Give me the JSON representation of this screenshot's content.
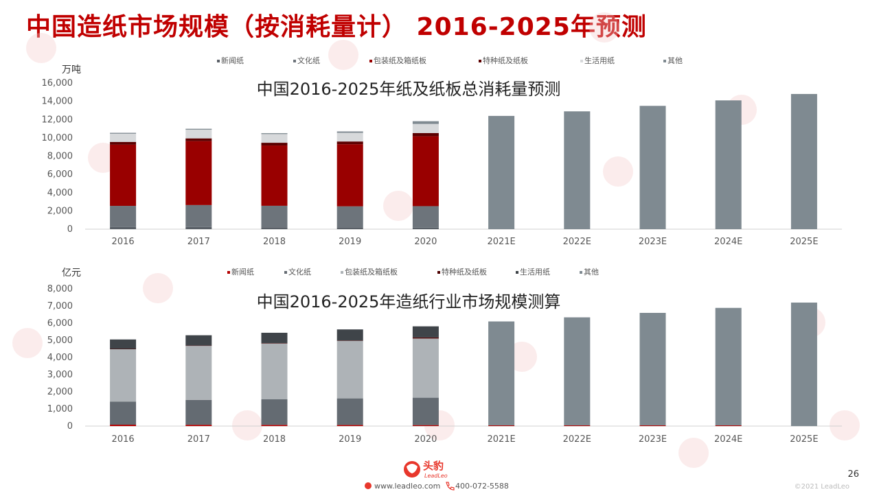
{
  "title": "中国造纸市场规模（按消耗量计） 2016-2025年预测",
  "chart_data": [
    {
      "type": "bar",
      "stacked": true,
      "title": "中国2016-2025年纸及纸板总消耗量预测",
      "unit": "万吨",
      "categories": [
        "2016",
        "2017",
        "2018",
        "2019",
        "2020",
        "2021E",
        "2022E",
        "2023E",
        "2024E",
        "2025E"
      ],
      "ylim": [
        0,
        16000
      ],
      "yticks": [
        0,
        2000,
        4000,
        6000,
        8000,
        10000,
        12000,
        14000,
        16000
      ],
      "ytick_labels": [
        "0",
        "2,000",
        "4,000",
        "6,000",
        "8,000",
        "10,000",
        "12,000",
        "14,000",
        "16,000"
      ],
      "legend": "top",
      "series": [
        {
          "name": "新闻纸",
          "color": "#595f66",
          "values": [
            250,
            240,
            210,
            200,
            170,
            0,
            0,
            0,
            0,
            0
          ]
        },
        {
          "name": "文化纸",
          "color": "#6d747b",
          "values": [
            2300,
            2400,
            2350,
            2300,
            2350,
            0,
            0,
            0,
            0,
            0
          ]
        },
        {
          "name": "包装纸及箱纸板",
          "color": "#990000",
          "values": [
            6700,
            7000,
            6600,
            6800,
            7650,
            0,
            0,
            0,
            0,
            0
          ]
        },
        {
          "name": "特种纸及纸板",
          "color": "#5c0000",
          "values": [
            300,
            300,
            300,
            300,
            350,
            0,
            0,
            0,
            0,
            0
          ]
        },
        {
          "name": "生活用纸",
          "color": "#d7d9db",
          "values": [
            900,
            950,
            950,
            950,
            1000,
            0,
            0,
            0,
            0,
            0
          ]
        },
        {
          "name": "其他",
          "color": "#7f8a91",
          "values": [
            100,
            100,
            100,
            150,
            300,
            12400,
            12900,
            13500,
            14100,
            14800
          ]
        }
      ]
    },
    {
      "type": "bar",
      "stacked": true,
      "title": "中国2016-2025年造纸行业市场规模测算",
      "unit": "亿元",
      "categories": [
        "2016",
        "2017",
        "2018",
        "2019",
        "2020",
        "2021E",
        "2022E",
        "2023E",
        "2024E",
        "2025E"
      ],
      "ylim": [
        0,
        8000
      ],
      "yticks": [
        0,
        1000,
        2000,
        3000,
        4000,
        5000,
        6000,
        7000,
        8000
      ],
      "ytick_labels": [
        "0",
        "1,000",
        "2,000",
        "3,000",
        "4,000",
        "5,000",
        "6,000",
        "7,000",
        "8,000"
      ],
      "legend": "top",
      "series": [
        {
          "name": "新闻纸",
          "color": "#b30000",
          "values": [
            80,
            75,
            70,
            65,
            55,
            40,
            40,
            40,
            40,
            0
          ]
        },
        {
          "name": "文化纸",
          "color": "#646b72",
          "values": [
            1350,
            1450,
            1500,
            1550,
            1600,
            0,
            0,
            0,
            0,
            0
          ]
        },
        {
          "name": "包装纸及箱纸板",
          "color": "#aeb3b7",
          "values": [
            3050,
            3150,
            3250,
            3350,
            3450,
            0,
            0,
            0,
            0,
            0
          ]
        },
        {
          "name": "特种纸及纸板",
          "color": "#4d0000",
          "values": [
            20,
            20,
            20,
            20,
            60,
            0,
            0,
            0,
            0,
            0
          ]
        },
        {
          "name": "生活用纸",
          "color": "#3f4449",
          "values": [
            550,
            600,
            600,
            650,
            650,
            0,
            0,
            0,
            0,
            0
          ]
        },
        {
          "name": "其他",
          "color": "#7f8a91",
          "values": [
            0,
            0,
            0,
            0,
            0,
            6060,
            6300,
            6560,
            6850,
            7200
          ]
        }
      ]
    }
  ],
  "footer": {
    "website": "www.leadleo.com",
    "phone": "400-072-5588",
    "page_number": "26",
    "copyright": "©2021 LeadLeo",
    "logo_text": "头豹",
    "logo_sub": "LeadLeo"
  },
  "colors": {
    "accent": "#c00000",
    "logo_red": "#e8372c"
  }
}
